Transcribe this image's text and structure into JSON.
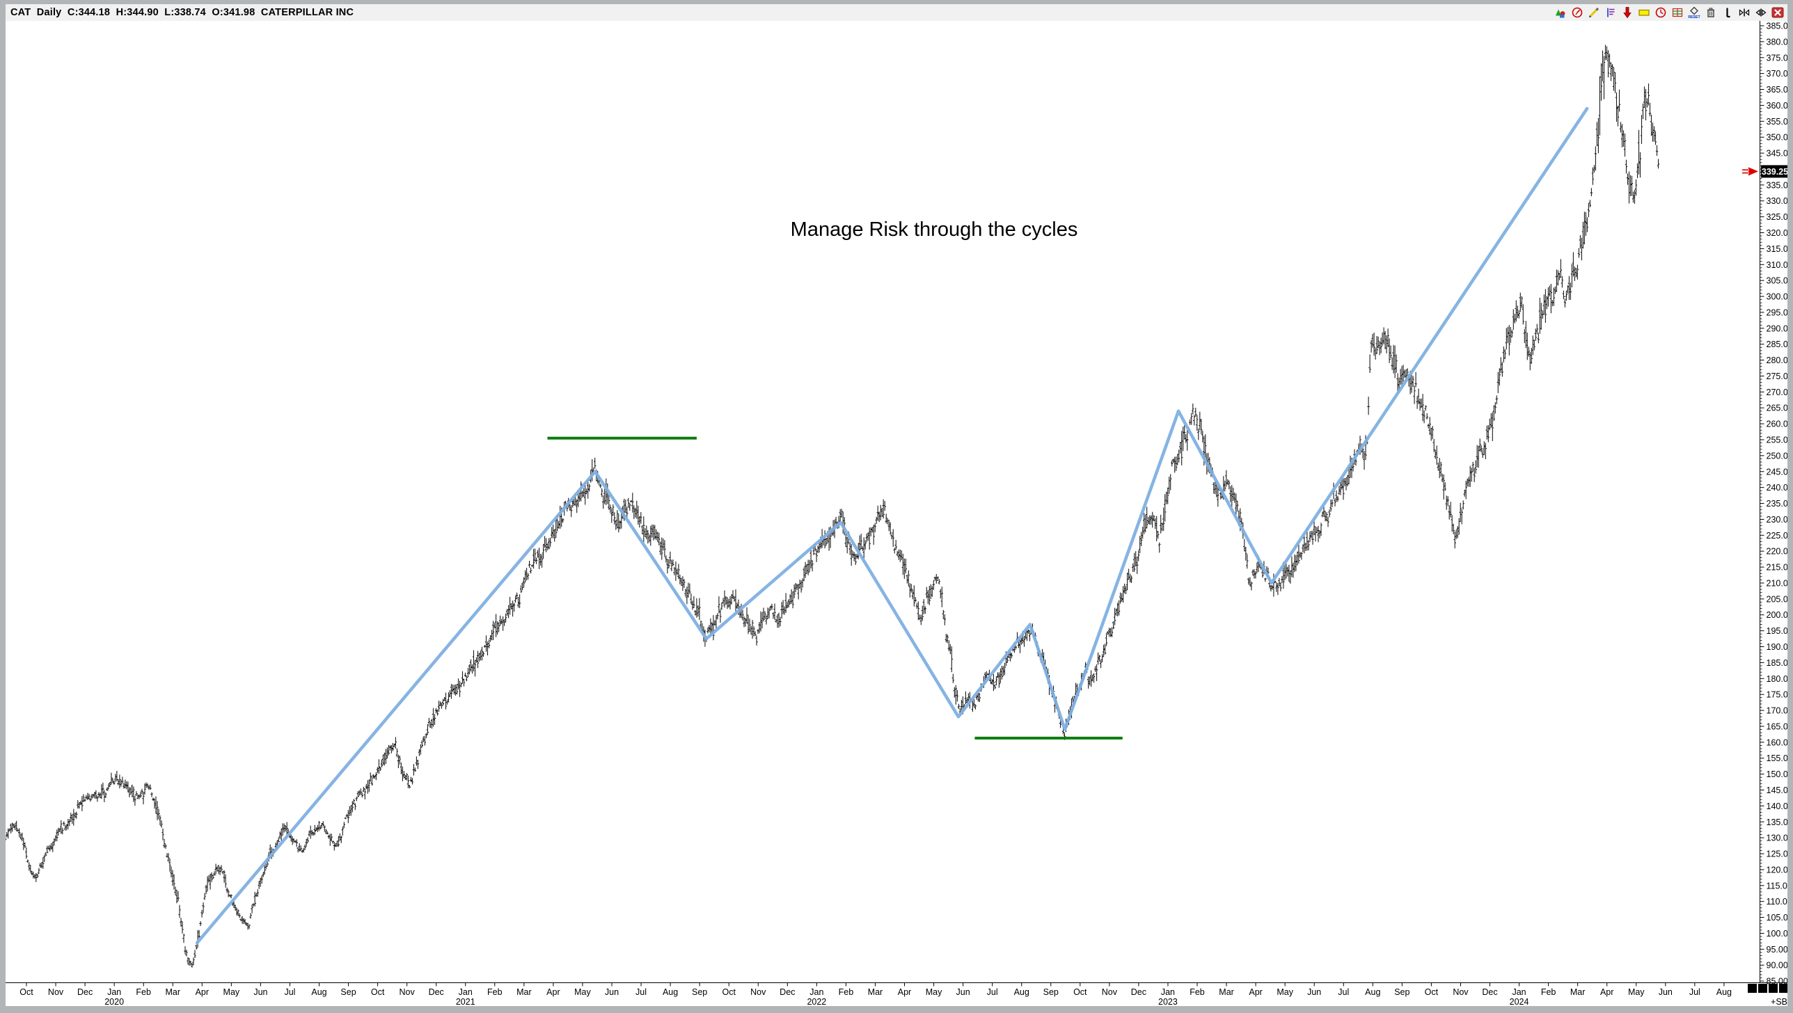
{
  "header": {
    "title": "CAT  Daily  C:344.18  H:344.90  L:338.74  O:341.98  CATERPILLAR INC"
  },
  "toolbar": {
    "icons": [
      {
        "name": "drawing-shapes-icon"
      },
      {
        "name": "gauge-icon"
      },
      {
        "name": "pencil-icon"
      },
      {
        "name": "flag-notes-icon"
      },
      {
        "name": "down-arrow-icon"
      },
      {
        "name": "highlighter-icon"
      },
      {
        "name": "clock-icon"
      },
      {
        "name": "grid-icon"
      },
      {
        "name": "reset-icon"
      },
      {
        "name": "trash-icon"
      },
      {
        "name": "bar-cursor-icon"
      },
      {
        "name": "collapse-horizontal-icon"
      },
      {
        "name": "expand-horizontal-icon"
      },
      {
        "name": "close-icon"
      }
    ]
  },
  "annotation": {
    "text": "Manage Risk through the cycles"
  },
  "footer": {
    "sb_label": "+SB",
    "block_count": 4
  },
  "price_tag": {
    "value": "339.25"
  },
  "colors": {
    "trend_line": "#7fb0e2",
    "support_line": "#0e7c0e",
    "bars": "#1a1a1a",
    "arrow": "#dd0000",
    "tag_bg": "#000000",
    "tag_fg": "#ffffff",
    "titlebar_bg": "#f1f1f1",
    "frame": "#b2b5b8"
  },
  "chart_data": {
    "type": "ohlc",
    "title": "CAT Daily",
    "symbol": "CAT",
    "company": "CATERPILLAR INC",
    "timeframe": "Daily",
    "quote": {
      "close": 344.18,
      "high": 344.9,
      "low": 338.74,
      "open": 341.98
    },
    "last_price": 339.25,
    "grid": false,
    "y_axis": {
      "min": 85,
      "max": 385,
      "step": 5,
      "minor_step": 1,
      "side": "right"
    },
    "x_axis": {
      "months": [
        {
          "label": "Oct"
        },
        {
          "label": "Nov"
        },
        {
          "label": "Dec"
        },
        {
          "label": "Jan",
          "year": "2020"
        },
        {
          "label": "Feb"
        },
        {
          "label": "Mar"
        },
        {
          "label": "Apr"
        },
        {
          "label": "May"
        },
        {
          "label": "Jun"
        },
        {
          "label": "Jul"
        },
        {
          "label": "Aug"
        },
        {
          "label": "Sep"
        },
        {
          "label": "Oct"
        },
        {
          "label": "Nov"
        },
        {
          "label": "Dec"
        },
        {
          "label": "Jan",
          "year": "2021"
        },
        {
          "label": "Feb"
        },
        {
          "label": "Mar"
        },
        {
          "label": "Apr"
        },
        {
          "label": "May"
        },
        {
          "label": "Jun"
        },
        {
          "label": "Jul"
        },
        {
          "label": "Aug"
        },
        {
          "label": "Sep"
        },
        {
          "label": "Oct"
        },
        {
          "label": "Nov"
        },
        {
          "label": "Dec"
        },
        {
          "label": "Jan",
          "year": "2022"
        },
        {
          "label": "Feb"
        },
        {
          "label": "Mar"
        },
        {
          "label": "Apr"
        },
        {
          "label": "May"
        },
        {
          "label": "Jun"
        },
        {
          "label": "Jul"
        },
        {
          "label": "Aug"
        },
        {
          "label": "Sep"
        },
        {
          "label": "Oct"
        },
        {
          "label": "Nov"
        },
        {
          "label": "Dec"
        },
        {
          "label": "Jan",
          "year": "2023"
        },
        {
          "label": "Feb"
        },
        {
          "label": "Mar"
        },
        {
          "label": "Apr"
        },
        {
          "label": "May"
        },
        {
          "label": "Jun"
        },
        {
          "label": "Jul"
        },
        {
          "label": "Aug"
        },
        {
          "label": "Sep"
        },
        {
          "label": "Oct"
        },
        {
          "label": "Nov"
        },
        {
          "label": "Dec"
        },
        {
          "label": "Jan",
          "year": "2024"
        },
        {
          "label": "Feb"
        },
        {
          "label": "Mar"
        },
        {
          "label": "Apr"
        },
        {
          "label": "May"
        },
        {
          "label": "Jun"
        },
        {
          "label": "Jul"
        },
        {
          "label": "Aug"
        }
      ]
    },
    "price_path": [
      [
        -0.72,
        130
      ],
      [
        -0.45,
        135
      ],
      [
        -0.2,
        132
      ],
      [
        0.05,
        122
      ],
      [
        0.3,
        117
      ],
      [
        0.6,
        123
      ],
      [
        0.9,
        128
      ],
      [
        1.2,
        132
      ],
      [
        1.5,
        136
      ],
      [
        1.8,
        140
      ],
      [
        2.1,
        143
      ],
      [
        2.4,
        142
      ],
      [
        2.7,
        145
      ],
      [
        3.0,
        147
      ],
      [
        3.3,
        148
      ],
      [
        3.6,
        144
      ],
      [
        3.9,
        143
      ],
      [
        4.2,
        146
      ],
      [
        4.45,
        139
      ],
      [
        4.7,
        129
      ],
      [
        4.95,
        120
      ],
      [
        5.2,
        108
      ],
      [
        5.45,
        95
      ],
      [
        5.65,
        89
      ],
      [
        5.83,
        96
      ],
      [
        6.1,
        112
      ],
      [
        6.35,
        118
      ],
      [
        6.6,
        121
      ],
      [
        6.85,
        115
      ],
      [
        7.1,
        110
      ],
      [
        7.35,
        104
      ],
      [
        7.6,
        103
      ],
      [
        7.85,
        112
      ],
      [
        8.1,
        120
      ],
      [
        8.35,
        125
      ],
      [
        8.6,
        129
      ],
      [
        8.85,
        133
      ],
      [
        9.1,
        128
      ],
      [
        9.35,
        126
      ],
      [
        9.6,
        130
      ],
      [
        9.85,
        133
      ],
      [
        10.1,
        135
      ],
      [
        10.35,
        131
      ],
      [
        10.6,
        128
      ],
      [
        10.85,
        135
      ],
      [
        11.1,
        140
      ],
      [
        11.35,
        143
      ],
      [
        11.6,
        146
      ],
      [
        11.85,
        149
      ],
      [
        12.1,
        152
      ],
      [
        12.35,
        156
      ],
      [
        12.6,
        159
      ],
      [
        12.85,
        150
      ],
      [
        13.1,
        147
      ],
      [
        13.35,
        155
      ],
      [
        13.6,
        162
      ],
      [
        13.85,
        167
      ],
      [
        14.1,
        171
      ],
      [
        14.35,
        174
      ],
      [
        14.6,
        176
      ],
      [
        14.85,
        179
      ],
      [
        15.1,
        183
      ],
      [
        15.35,
        186
      ],
      [
        15.6,
        189
      ],
      [
        15.85,
        193
      ],
      [
        16.1,
        197
      ],
      [
        16.35,
        199
      ],
      [
        16.6,
        202
      ],
      [
        16.85,
        207
      ],
      [
        17.1,
        212
      ],
      [
        17.35,
        216
      ],
      [
        17.6,
        219
      ],
      [
        17.85,
        223
      ],
      [
        18.1,
        228
      ],
      [
        18.35,
        232
      ],
      [
        18.6,
        235
      ],
      [
        18.85,
        238
      ],
      [
        19.1,
        241
      ],
      [
        19.3,
        244
      ],
      [
        19.43,
        245
      ],
      [
        19.6,
        241
      ],
      [
        19.8,
        237
      ],
      [
        20.0,
        233
      ],
      [
        20.2,
        229
      ],
      [
        20.45,
        233
      ],
      [
        20.7,
        236
      ],
      [
        20.95,
        230
      ],
      [
        21.2,
        224
      ],
      [
        21.45,
        229
      ],
      [
        21.7,
        222
      ],
      [
        21.95,
        217
      ],
      [
        22.2,
        213
      ],
      [
        22.45,
        209
      ],
      [
        22.7,
        205
      ],
      [
        22.95,
        200
      ],
      [
        23.23,
        193
      ],
      [
        23.45,
        197
      ],
      [
        23.7,
        201
      ],
      [
        23.95,
        204
      ],
      [
        24.2,
        206
      ],
      [
        24.45,
        201
      ],
      [
        24.7,
        196
      ],
      [
        24.95,
        193
      ],
      [
        25.2,
        199
      ],
      [
        25.45,
        203
      ],
      [
        25.7,
        198
      ],
      [
        25.95,
        203
      ],
      [
        26.2,
        206
      ],
      [
        26.45,
        210
      ],
      [
        26.7,
        215
      ],
      [
        26.95,
        219
      ],
      [
        27.2,
        222
      ],
      [
        27.45,
        225
      ],
      [
        27.7,
        228
      ],
      [
        27.82,
        230
      ],
      [
        28.05,
        224
      ],
      [
        28.3,
        217
      ],
      [
        28.55,
        221
      ],
      [
        28.8,
        225
      ],
      [
        29.05,
        229
      ],
      [
        29.3,
        232
      ],
      [
        29.55,
        226
      ],
      [
        29.8,
        219
      ],
      [
        30.05,
        213
      ],
      [
        30.3,
        206
      ],
      [
        30.55,
        199
      ],
      [
        30.8,
        206
      ],
      [
        31.05,
        212
      ],
      [
        31.3,
        203
      ],
      [
        31.55,
        188
      ],
      [
        31.84,
        170
      ],
      [
        32.1,
        175
      ],
      [
        32.35,
        171
      ],
      [
        32.6,
        177
      ],
      [
        32.85,
        182
      ],
      [
        33.1,
        177
      ],
      [
        33.35,
        183
      ],
      [
        33.6,
        188
      ],
      [
        33.85,
        191
      ],
      [
        34.1,
        194
      ],
      [
        34.29,
        196
      ],
      [
        34.55,
        191
      ],
      [
        34.8,
        184
      ],
      [
        35.05,
        176
      ],
      [
        35.3,
        169
      ],
      [
        35.48,
        163
      ],
      [
        35.7,
        170
      ],
      [
        35.95,
        177
      ],
      [
        36.2,
        182
      ],
      [
        36.45,
        178
      ],
      [
        36.7,
        186
      ],
      [
        36.95,
        193
      ],
      [
        37.2,
        199
      ],
      [
        37.45,
        204
      ],
      [
        37.7,
        211
      ],
      [
        37.95,
        219
      ],
      [
        38.2,
        227
      ],
      [
        38.45,
        231
      ],
      [
        38.7,
        224
      ],
      [
        38.95,
        236
      ],
      [
        39.2,
        247
      ],
      [
        39.36,
        252
      ],
      [
        39.6,
        257
      ],
      [
        39.85,
        262
      ],
      [
        40.05,
        261
      ],
      [
        40.3,
        250
      ],
      [
        40.55,
        243
      ],
      [
        40.8,
        239
      ],
      [
        41.05,
        242
      ],
      [
        41.3,
        235
      ],
      [
        41.55,
        226
      ],
      [
        41.8,
        209
      ],
      [
        42.05,
        216
      ],
      [
        42.3,
        212
      ],
      [
        42.54,
        210
      ],
      [
        42.8,
        208
      ],
      [
        43.05,
        212
      ],
      [
        43.3,
        215
      ],
      [
        43.55,
        220
      ],
      [
        43.8,
        225
      ],
      [
        44.05,
        228
      ],
      [
        44.3,
        231
      ],
      [
        44.55,
        234
      ],
      [
        44.8,
        238
      ],
      [
        45.05,
        243
      ],
      [
        45.3,
        247
      ],
      [
        45.55,
        251
      ],
      [
        45.8,
        254
      ],
      [
        45.92,
        288
      ],
      [
        46.15,
        284
      ],
      [
        46.4,
        288
      ],
      [
        46.65,
        281
      ],
      [
        46.9,
        273
      ],
      [
        47.15,
        277
      ],
      [
        47.4,
        272
      ],
      [
        47.65,
        268
      ],
      [
        47.9,
        261
      ],
      [
        48.15,
        252
      ],
      [
        48.4,
        242
      ],
      [
        48.6,
        233
      ],
      [
        48.85,
        224
      ],
      [
        49.1,
        235
      ],
      [
        49.35,
        245
      ],
      [
        49.6,
        250
      ],
      [
        49.85,
        255
      ],
      [
        50.1,
        262
      ],
      [
        50.35,
        274
      ],
      [
        50.6,
        287
      ],
      [
        50.85,
        294
      ],
      [
        51.1,
        298
      ],
      [
        51.35,
        281
      ],
      [
        51.6,
        288
      ],
      [
        51.85,
        295
      ],
      [
        52.1,
        298
      ],
      [
        52.35,
        305
      ],
      [
        52.6,
        300
      ],
      [
        52.85,
        308
      ],
      [
        53.1,
        315
      ],
      [
        53.35,
        323
      ],
      [
        53.6,
        340
      ],
      [
        53.8,
        362
      ],
      [
        53.96,
        378
      ],
      [
        54.15,
        371
      ],
      [
        54.35,
        362
      ],
      [
        54.55,
        349
      ],
      [
        54.75,
        336
      ],
      [
        54.9,
        331
      ],
      [
        55.1,
        344
      ],
      [
        55.3,
        361
      ],
      [
        55.45,
        362
      ],
      [
        55.6,
        351
      ],
      [
        55.72,
        344
      ],
      [
        55.8,
        339.25
      ]
    ],
    "trend_line": {
      "points_month_price": [
        [
          5.83,
          97
        ],
        [
          19.43,
          245
        ],
        [
          23.23,
          192.5
        ],
        [
          27.82,
          229
        ],
        [
          31.84,
          168
        ],
        [
          34.29,
          197
        ],
        [
          35.48,
          164
        ],
        [
          39.36,
          264
        ],
        [
          42.54,
          210
        ],
        [
          53.32,
          359
        ]
      ]
    },
    "support_lines": [
      {
        "price": 255.5,
        "from_month": 17.8,
        "to_month": 22.9
      },
      {
        "price": 161.3,
        "from_month": 32.4,
        "to_month": 37.45
      }
    ],
    "annotation": {
      "text": "Manage Risk through the cycles",
      "x_month": 31.0,
      "price": 325
    },
    "legend_position": "none"
  }
}
